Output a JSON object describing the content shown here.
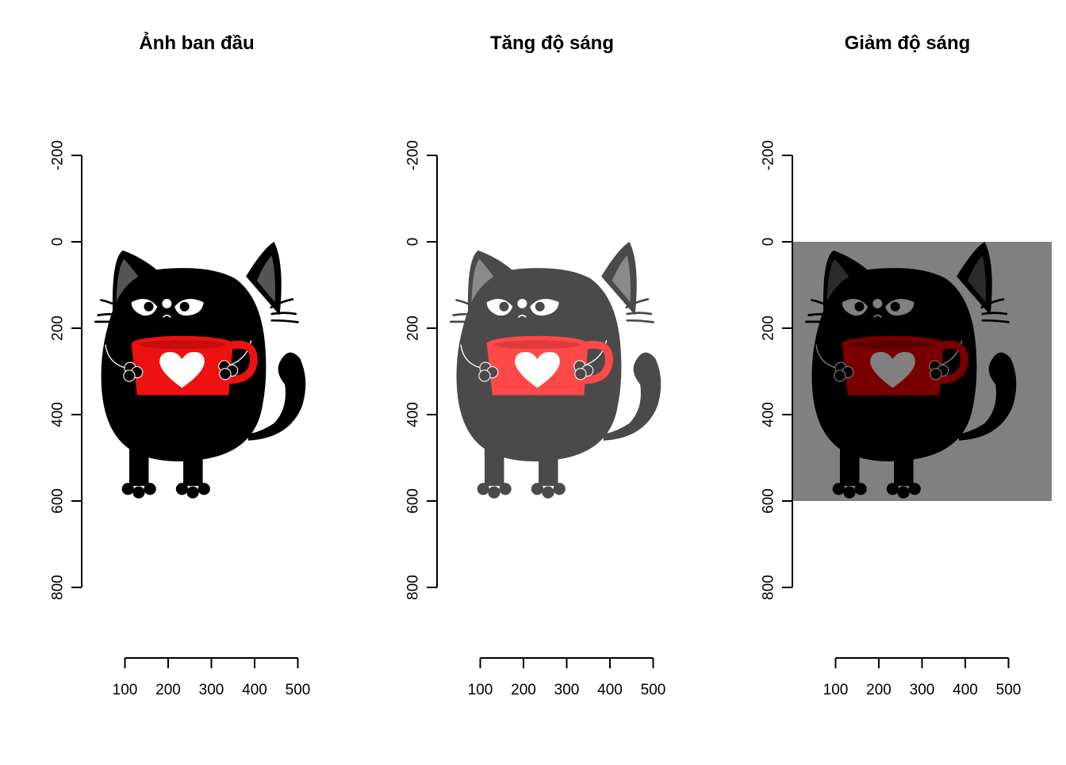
{
  "figure": {
    "panels": [
      {
        "title": "Ảnh ban đầu",
        "variant": "original",
        "colors": {
          "background": "#ffffff",
          "body": "#000000",
          "ear": "#555555",
          "mug": "#ee1111",
          "mug_shadow": "#c40d0d",
          "heart": "#ffffff",
          "detail": "#ffffff",
          "eye": "#ffffff",
          "pupil": "#000000"
        }
      },
      {
        "title": "Tăng độ sáng",
        "variant": "brightened",
        "colors": {
          "background": "#ffffff",
          "body": "#4a4a4a",
          "ear": "#8a8a8a",
          "mug": "#ff4848",
          "mug_shadow": "#e23a3a",
          "heart": "#ffffff",
          "detail": "#ffffff",
          "eye": "#ffffff",
          "pupil": "#4a4a4a"
        }
      },
      {
        "title": "Giảm độ sáng",
        "variant": "darkened",
        "colors": {
          "background": "#808080",
          "body": "#000000",
          "ear": "#2b2b2b",
          "mug": "#7a0000",
          "mug_shadow": "#5e0000",
          "heart": "#808080",
          "detail": "#808080",
          "eye": "#808080",
          "pupil": "#000000"
        }
      }
    ]
  },
  "chart_data": [
    {
      "type": "image",
      "title": "Ảnh ban đầu",
      "xlabel": "",
      "ylabel": "",
      "image_extent": {
        "x": [
          0,
          600
        ],
        "y": [
          0,
          600
        ]
      },
      "xlim": [
        0,
        600
      ],
      "ylim": [
        900,
        -300
      ],
      "y_reversed": true,
      "xticks": [
        100,
        200,
        300,
        400,
        500
      ],
      "xtick_labels": [
        "100",
        "200",
        "300",
        "400",
        "500"
      ],
      "yticks": [
        -200,
        0,
        200,
        400,
        600,
        800
      ],
      "ytick_labels": [
        "-200",
        "0",
        "200",
        "400",
        "600",
        "800"
      ],
      "grid": false,
      "legend": "none"
    },
    {
      "type": "image",
      "title": "Tăng độ sáng",
      "xlabel": "",
      "ylabel": "",
      "image_extent": {
        "x": [
          0,
          600
        ],
        "y": [
          0,
          600
        ]
      },
      "xlim": [
        0,
        600
      ],
      "ylim": [
        900,
        -300
      ],
      "y_reversed": true,
      "xticks": [
        100,
        200,
        300,
        400,
        500
      ],
      "xtick_labels": [
        "100",
        "200",
        "300",
        "400",
        "500"
      ],
      "yticks": [
        -200,
        0,
        200,
        400,
        600,
        800
      ],
      "ytick_labels": [
        "-200",
        "0",
        "200",
        "400",
        "600",
        "800"
      ],
      "grid": false,
      "legend": "none"
    },
    {
      "type": "image",
      "title": "Giảm độ sáng",
      "xlabel": "",
      "ylabel": "",
      "image_extent": {
        "x": [
          0,
          600
        ],
        "y": [
          0,
          600
        ]
      },
      "xlim": [
        0,
        600
      ],
      "ylim": [
        900,
        -300
      ],
      "y_reversed": true,
      "xticks": [
        100,
        200,
        300,
        400,
        500
      ],
      "xtick_labels": [
        "100",
        "200",
        "300",
        "400",
        "500"
      ],
      "yticks": [
        -200,
        0,
        200,
        400,
        600,
        800
      ],
      "ytick_labels": [
        "-200",
        "0",
        "200",
        "400",
        "600",
        "800"
      ],
      "grid": false,
      "legend": "none"
    }
  ]
}
